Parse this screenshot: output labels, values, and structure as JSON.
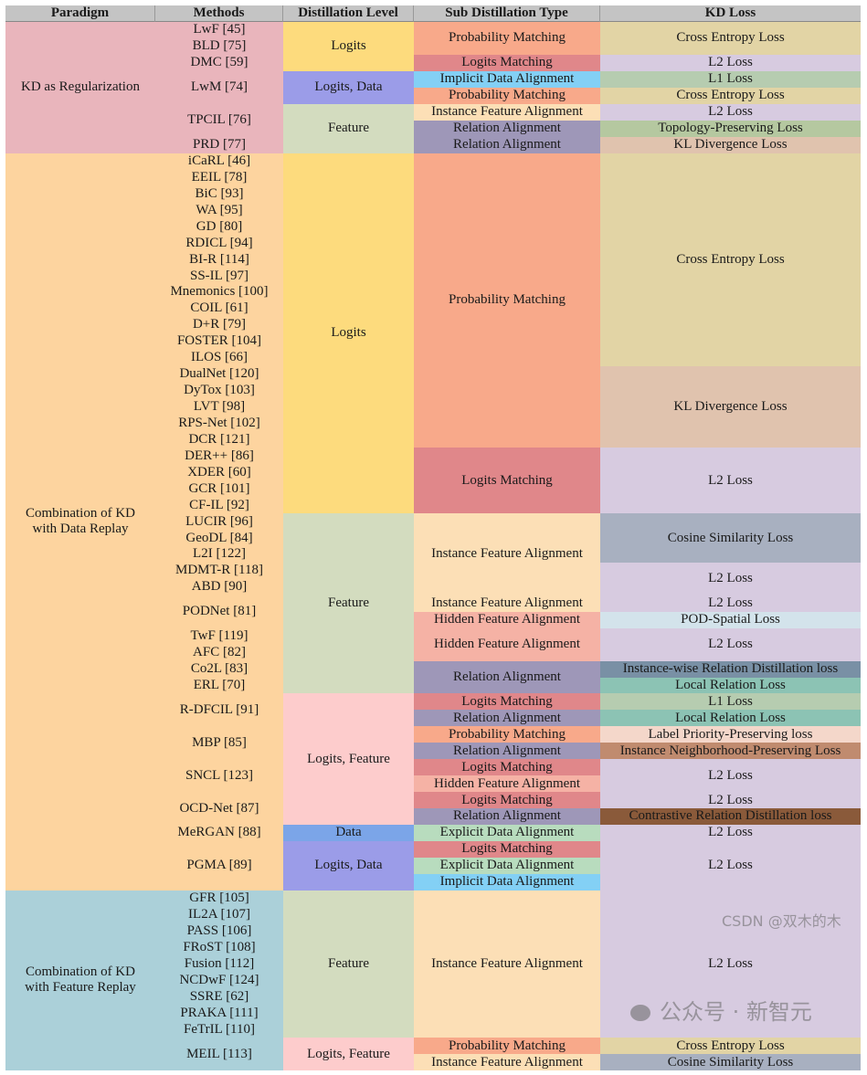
{
  "headers": [
    "Paradigm",
    "Methods",
    "Distillation Level",
    "Sub Distillation Type",
    "KD Loss"
  ],
  "paradigm": [
    {
      "label": "KD as Regularization",
      "span": 8,
      "color": "#e9b5bc"
    },
    {
      "label": "Combination of KD\nwith Data Replay",
      "span": 45,
      "color": "#fdd49f"
    },
    {
      "label": "Combination of KD\nwith Feature Replay",
      "span": 11,
      "color": "#abd0d9"
    }
  ],
  "methods": [
    {
      "label": "LwF [45]",
      "span": 1,
      "color": "#e9b5bc"
    },
    {
      "label": "BLD [75]",
      "span": 1,
      "color": "#e9b5bc"
    },
    {
      "label": "DMC [59]",
      "span": 1,
      "color": "#e9b5bc"
    },
    {
      "label": "LwM [74]",
      "span": 2,
      "color": "#e9b5bc"
    },
    {
      "label": "TPCIL [76]",
      "span": 2,
      "color": "#e9b5bc"
    },
    {
      "label": "PRD [77]",
      "span": 1,
      "color": "#e9b5bc"
    },
    {
      "label": "iCaRL [46]",
      "span": 1,
      "color": "#fdd49f"
    },
    {
      "label": "EEIL [78]",
      "span": 1,
      "color": "#fdd49f"
    },
    {
      "label": "BiC [93]",
      "span": 1,
      "color": "#fdd49f"
    },
    {
      "label": "WA [95]",
      "span": 1,
      "color": "#fdd49f"
    },
    {
      "label": "GD [80]",
      "span": 1,
      "color": "#fdd49f"
    },
    {
      "label": "RDICL [94]",
      "span": 1,
      "color": "#fdd49f"
    },
    {
      "label": "BI-R [114]",
      "span": 1,
      "color": "#fdd49f"
    },
    {
      "label": "SS-IL [97]",
      "span": 1,
      "color": "#fdd49f"
    },
    {
      "label": "Mnemonics [100]",
      "span": 1,
      "color": "#fdd49f"
    },
    {
      "label": "COIL [61]",
      "span": 1,
      "color": "#fdd49f"
    },
    {
      "label": "D+R [79]",
      "span": 1,
      "color": "#fdd49f"
    },
    {
      "label": "FOSTER [104]",
      "span": 1,
      "color": "#fdd49f"
    },
    {
      "label": "ILOS [66]",
      "span": 1,
      "color": "#fdd49f"
    },
    {
      "label": "DualNet [120]",
      "span": 1,
      "color": "#fdd49f"
    },
    {
      "label": "DyTox [103]",
      "span": 1,
      "color": "#fdd49f"
    },
    {
      "label": "LVT [98]",
      "span": 1,
      "color": "#fdd49f"
    },
    {
      "label": "RPS-Net [102]",
      "span": 1,
      "color": "#fdd49f"
    },
    {
      "label": "DCR [121]",
      "span": 1,
      "color": "#fdd49f"
    },
    {
      "label": "DER++ [86]",
      "span": 1,
      "color": "#fdd49f"
    },
    {
      "label": "XDER [60]",
      "span": 1,
      "color": "#fdd49f"
    },
    {
      "label": "GCR [101]",
      "span": 1,
      "color": "#fdd49f"
    },
    {
      "label": "CF-IL [92]",
      "span": 1,
      "color": "#fdd49f"
    },
    {
      "label": "LUCIR [96]",
      "span": 1,
      "color": "#fdd49f"
    },
    {
      "label": "GeoDL [84]",
      "span": 1,
      "color": "#fdd49f"
    },
    {
      "label": "L2I [122]",
      "span": 1,
      "color": "#fdd49f"
    },
    {
      "label": "MDMT-R [118]",
      "span": 1,
      "color": "#fdd49f"
    },
    {
      "label": "ABD [90]",
      "span": 1,
      "color": "#fdd49f"
    },
    {
      "label": "PODNet [81]",
      "span": 2,
      "color": "#fdd49f"
    },
    {
      "label": "TwF [119]",
      "span": 1,
      "color": "#fdd49f"
    },
    {
      "label": "AFC [82]",
      "span": 1,
      "color": "#fdd49f"
    },
    {
      "label": "Co2L [83]",
      "span": 1,
      "color": "#fdd49f"
    },
    {
      "label": "ERL [70]",
      "span": 1,
      "color": "#fdd49f"
    },
    {
      "label": "R-DFCIL [91]",
      "span": 2,
      "color": "#fdd49f"
    },
    {
      "label": "MBP [85]",
      "span": 2,
      "color": "#fdd49f"
    },
    {
      "label": "SNCL [123]",
      "span": 2,
      "color": "#fdd49f"
    },
    {
      "label": "OCD-Net [87]",
      "span": 2,
      "color": "#fdd49f"
    },
    {
      "label": "MeRGAN [88]",
      "span": 1,
      "color": "#fdd49f"
    },
    {
      "label": "PGMA [89]",
      "span": 3,
      "color": "#fdd49f"
    },
    {
      "label": "GFR [105]",
      "span": 1,
      "color": "#abd0d9"
    },
    {
      "label": "IL2A [107]",
      "span": 1,
      "color": "#abd0d9"
    },
    {
      "label": "PASS [106]",
      "span": 1,
      "color": "#abd0d9"
    },
    {
      "label": "FRoST [108]",
      "span": 1,
      "color": "#abd0d9"
    },
    {
      "label": "Fusion [112]",
      "span": 1,
      "color": "#abd0d9"
    },
    {
      "label": "NCDwF [124]",
      "span": 1,
      "color": "#abd0d9"
    },
    {
      "label": "SSRE [62]",
      "span": 1,
      "color": "#abd0d9"
    },
    {
      "label": "PRAKA [111]",
      "span": 1,
      "color": "#abd0d9"
    },
    {
      "label": "FeTrIL [110]",
      "span": 1,
      "color": "#abd0d9"
    },
    {
      "label": "MEIL [113]",
      "span": 2,
      "color": "#abd0d9"
    }
  ],
  "level": [
    {
      "label": "Logits",
      "span": 3,
      "color": "#fddb7d"
    },
    {
      "label": "Logits, Data",
      "span": 2,
      "color": "#9b9ce8"
    },
    {
      "label": "Feature",
      "span": 3,
      "color": "#d3dcbf"
    },
    {
      "label": "Logits",
      "span": 22,
      "color": "#fddb7d"
    },
    {
      "label": "Feature",
      "span": 11,
      "color": "#d3dcbf"
    },
    {
      "label": "Logits, Feature",
      "span": 8,
      "color": "#fdcccc"
    },
    {
      "label": "Data",
      "span": 1,
      "color": "#7ba5e8"
    },
    {
      "label": "Logits, Data",
      "span": 3,
      "color": "#9b9ce8"
    },
    {
      "label": "Feature",
      "span": 9,
      "color": "#d3dcbf"
    },
    {
      "label": "Logits, Feature",
      "span": 2,
      "color": "#fdcccc"
    }
  ],
  "sub_type": [
    {
      "label": "Probability Matching",
      "span": 2,
      "color": "#f8a98a"
    },
    {
      "label": "Logits Matching",
      "span": 1,
      "color": "#e0878a"
    },
    {
      "label": "Implicit Data Alignment",
      "span": 1,
      "color": "#83d0f5"
    },
    {
      "label": "Probability Matching",
      "span": 1,
      "color": "#f8a98a"
    },
    {
      "label": "Instance Feature Alignment",
      "span": 1,
      "color": "#fcdfb6"
    },
    {
      "label": "Relation Alignment",
      "span": 1,
      "color": "#9e97b8"
    },
    {
      "label": "Relation Alignment",
      "span": 1,
      "color": "#9e97b8"
    },
    {
      "label": "Probability Matching",
      "span": 18,
      "color": "#f8a98a"
    },
    {
      "label": "Logits Matching",
      "span": 4,
      "color": "#e0878a"
    },
    {
      "label": "Instance Feature Alignment",
      "span": 5,
      "color": "#fcdfb6"
    },
    {
      "label": "Instance Feature Alignment",
      "span": 1,
      "color": "#fcdfb6"
    },
    {
      "label": "Hidden Feature Alignment",
      "span": 1,
      "color": "#f5b2a5"
    },
    {
      "label": "Hidden Feature Alignment",
      "span": 2,
      "color": "#f5b2a5"
    },
    {
      "label": "Relation Alignment",
      "span": 2,
      "color": "#9e97b8"
    },
    {
      "label": "Logits Matching",
      "span": 1,
      "color": "#e0878a"
    },
    {
      "label": "Relation Alignment",
      "span": 1,
      "color": "#9e97b8"
    },
    {
      "label": "Probability Matching",
      "span": 1,
      "color": "#f8a98a"
    },
    {
      "label": "Relation Alignment",
      "span": 1,
      "color": "#9e97b8"
    },
    {
      "label": "Logits Matching",
      "span": 1,
      "color": "#e0878a"
    },
    {
      "label": "Hidden Feature Alignment",
      "span": 1,
      "color": "#f5b2a5"
    },
    {
      "label": "Logits Matching",
      "span": 1,
      "color": "#e0878a"
    },
    {
      "label": "Relation Alignment",
      "span": 1,
      "color": "#9e97b8"
    },
    {
      "label": "Explicit Data Alignment",
      "span": 1,
      "color": "#b8dcbe"
    },
    {
      "label": "Logits Matching",
      "span": 1,
      "color": "#e0878a"
    },
    {
      "label": "Explicit Data Alignment",
      "span": 1,
      "color": "#b8dcbe"
    },
    {
      "label": "Implicit Data Alignment",
      "span": 1,
      "color": "#83d0f5"
    },
    {
      "label": "Instance Feature Alignment",
      "span": 9,
      "color": "#fcdfb6"
    },
    {
      "label": "Probability Matching",
      "span": 1,
      "color": "#f8a98a"
    },
    {
      "label": "Instance Feature Alignment",
      "span": 1,
      "color": "#fcdfb6"
    }
  ],
  "kd_loss": [
    {
      "label": "Cross Entropy Loss",
      "span": 2,
      "color": "#e2d4a5"
    },
    {
      "label": "L2 Loss",
      "span": 1,
      "color": "#d7cbe0"
    },
    {
      "label": "L1 Loss",
      "span": 1,
      "color": "#b6ccb0"
    },
    {
      "label": "Cross Entropy Loss",
      "span": 1,
      "color": "#e2d4a5"
    },
    {
      "label": "L2 Loss",
      "span": 1,
      "color": "#d7cbe0"
    },
    {
      "label": "Topology-Preserving Loss",
      "span": 1,
      "color": "#b5c8a0"
    },
    {
      "label": "KL Divergence Loss",
      "span": 1,
      "color": "#e0c3ae"
    },
    {
      "label": "Cross Entropy Loss",
      "span": 13,
      "color": "#e2d4a5"
    },
    {
      "label": "KL Divergence Loss",
      "span": 5,
      "color": "#e0c3ae"
    },
    {
      "label": "L2 Loss",
      "span": 4,
      "color": "#d7cbe0"
    },
    {
      "label": "Cosine Similarity Loss",
      "span": 3,
      "color": "#a8b0c0"
    },
    {
      "label": "L2 Loss",
      "span": 2,
      "color": "#d7cbe0"
    },
    {
      "label": "L2 Loss",
      "span": 1,
      "color": "#d7cbe0"
    },
    {
      "label": "POD-Spatial Loss",
      "span": 1,
      "color": "#d3e3eb"
    },
    {
      "label": "L2 Loss",
      "span": 2,
      "color": "#d7cbe0"
    },
    {
      "label": "Instance-wise Relation Distillation loss",
      "span": 1,
      "color": "#7990a5"
    },
    {
      "label": "Local Relation Loss",
      "span": 1,
      "color": "#8cc3b4"
    },
    {
      "label": "L1 Loss",
      "span": 1,
      "color": "#b6ccb0"
    },
    {
      "label": "Local Relation Loss",
      "span": 1,
      "color": "#8cc3b4"
    },
    {
      "label": "Label Priority-Preserving loss",
      "span": 1,
      "color": "#f4d7ca"
    },
    {
      "label": "Instance Neighborhood-Preserving Loss",
      "span": 1,
      "color": "#c08b6f"
    },
    {
      "label": "L2 Loss",
      "span": 2,
      "color": "#d7cbe0"
    },
    {
      "label": "L2 Loss",
      "span": 1,
      "color": "#d7cbe0"
    },
    {
      "label": "Contrastive Relation Distillation loss",
      "span": 1,
      "color": "#8a5a3a"
    },
    {
      "label": "L2 Loss",
      "span": 1,
      "color": "#d7cbe0"
    },
    {
      "label": "L2 Loss",
      "span": 3,
      "color": "#d7cbe0"
    },
    {
      "label": "L2 Loss",
      "span": 9,
      "color": "#d7cbe0"
    },
    {
      "label": "Cross Entropy Loss",
      "span": 1,
      "color": "#e2d4a5"
    },
    {
      "label": "Cosine Similarity Loss",
      "span": 1,
      "color": "#a8b0c0"
    }
  ],
  "watermark": {
    "wechat": "公众号 · 新智元",
    "csdn": "CSDN @双木的木"
  }
}
